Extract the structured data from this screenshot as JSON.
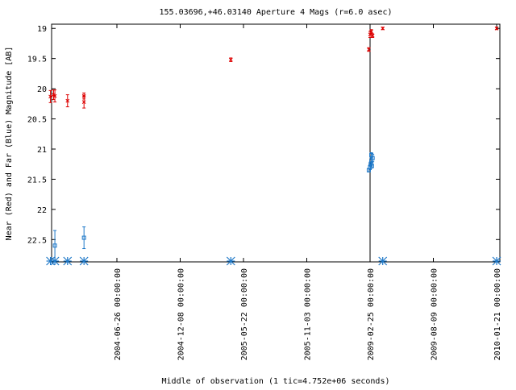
{
  "chart_data": {
    "type": "scatter",
    "title": "155.03696,+46.03140   Aperture 4 Mags (r=6.0 asec)",
    "xlabel": "Middle of observation (1 tic=4.752e+06 seconds)",
    "ylabel": "Near (Red) and Far (Blue) Magnitude [AB]",
    "ylim": [
      22.87,
      18.93
    ],
    "y_inverted": true,
    "y_ticks": [
      "19",
      "19.5",
      "20",
      "20.5",
      "21",
      "21.5",
      "22",
      "22.5"
    ],
    "x_tick_labels": [
      "2004-06-26 00:00:00",
      "2004-12-08 00:00:00",
      "2005-05-22 00:00:00",
      "2005-11-03 00:00:00",
      "2009-02-25 00:00:00",
      "2009-08-09 00:00:00",
      "2010-01-21 00:00:00"
    ],
    "vertical_marker_at_tick": 4.0,
    "series": [
      {
        "color": "#dd0000",
        "marker": "x-errorbar",
        "points": [
          {
            "t": -1.05,
            "y": 20.13,
            "err": 0.1
          },
          {
            "t": -1.0,
            "y": 20.1,
            "err": 0.08
          },
          {
            "t": -0.98,
            "y": 20.12,
            "err": 0.1
          },
          {
            "t": -0.78,
            "y": 20.2,
            "err": 0.1
          },
          {
            "t": -0.52,
            "y": 20.12,
            "err": 0.05
          },
          {
            "t": -0.52,
            "y": 20.22,
            "err": 0.1
          },
          {
            "t": 1.8,
            "y": 19.52,
            "err": 0.03
          },
          {
            "t": 3.98,
            "y": 19.35,
            "err": 0.03
          },
          {
            "t": 4.0,
            "y": 19.1,
            "err": 0.05
          },
          {
            "t": 4.02,
            "y": 19.05,
            "err": 0.03
          },
          {
            "t": 4.04,
            "y": 19.12,
            "err": 0.03
          },
          {
            "t": 4.2,
            "y": 19.0,
            "err": 0.02
          },
          {
            "t": 6.0,
            "y": 19.0,
            "err": 0.02
          }
        ]
      },
      {
        "color": "#1e78c8",
        "marker": "square-errorbar",
        "points": [
          {
            "t": -0.98,
            "y": 22.6,
            "err": 0.25
          },
          {
            "t": -0.52,
            "y": 22.47,
            "err": 0.18
          },
          {
            "t": 3.98,
            "y": 21.35,
            "err": 0.03
          },
          {
            "t": 4.0,
            "y": 21.3,
            "err": 0.04
          },
          {
            "t": 4.01,
            "y": 21.25,
            "err": 0.04
          },
          {
            "t": 4.02,
            "y": 21.2,
            "err": 0.05
          },
          {
            "t": 4.03,
            "y": 21.28,
            "err": 0.03
          },
          {
            "t": 4.04,
            "y": 21.15,
            "err": 0.06
          },
          {
            "t": 4.02,
            "y": 21.1,
            "err": 0.04
          }
        ]
      },
      {
        "color": "#1e78c8",
        "marker": "asterisk-limit",
        "points": [
          {
            "t": -1.05
          },
          {
            "t": -0.98
          },
          {
            "t": -0.78
          },
          {
            "t": -0.52
          },
          {
            "t": 1.8
          },
          {
            "t": 4.2
          },
          {
            "t": 6.0
          }
        ]
      }
    ]
  }
}
